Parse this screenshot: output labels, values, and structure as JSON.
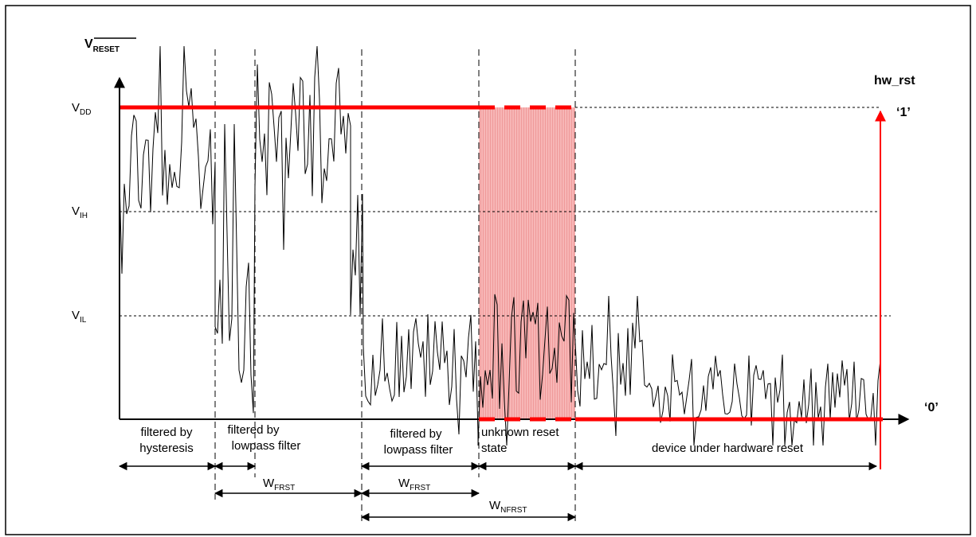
{
  "diagram": {
    "y_axis_label": "V",
    "y_axis_label_sub": "RESET",
    "right_axis_label": "hw_rst",
    "right_level_high": "‘1’",
    "right_level_low": "‘0’",
    "levels": {
      "vdd": {
        "main": "V",
        "sub": "DD"
      },
      "vih": {
        "main": "V",
        "sub": "IH"
      },
      "vil": {
        "main": "V",
        "sub": "IL"
      }
    },
    "regions": [
      {
        "line1": "filtered by",
        "line2": "hysteresis"
      },
      {
        "line1": "filtered by",
        "line2": "lowpass filter"
      },
      {
        "line1": "filtered by",
        "line2": "lowpass filter"
      },
      {
        "line1": "unknown reset",
        "line2": "state"
      },
      {
        "line1": "device under hardware reset",
        "line2": ""
      }
    ],
    "widths": {
      "wfrst_1": {
        "main": "W",
        "sub": "FRST"
      },
      "wfrst_2": {
        "main": "W",
        "sub": "FRST"
      },
      "wnfrst": {
        "main": "W",
        "sub": "NFRST"
      }
    },
    "colors": {
      "signal": "#000000",
      "hw_rst": "#ff0000",
      "unknown_region_fill": "#f7b6b6",
      "unknown_region_stripe": "#ef9a9a"
    }
  }
}
